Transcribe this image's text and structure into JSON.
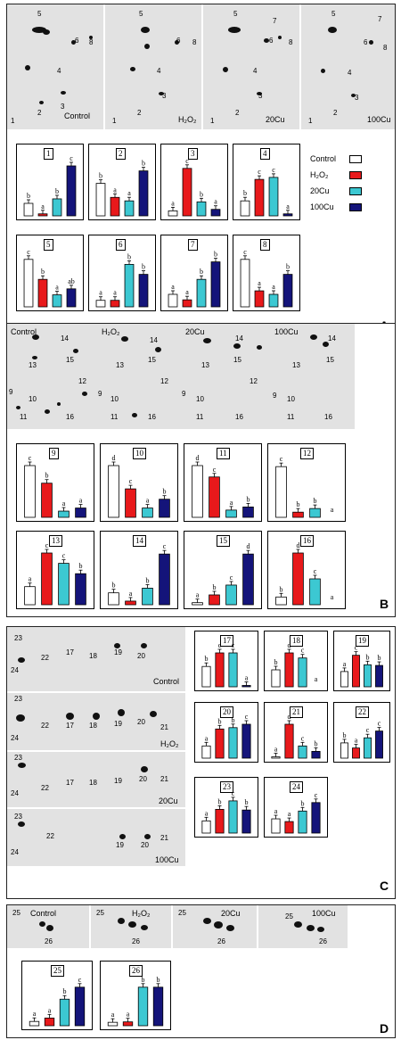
{
  "colors": {
    "control": "#ffffff",
    "h2o2": "#e8191b",
    "cu20": "#3cc8d2",
    "cu100": "#14147a"
  },
  "legend": {
    "items": [
      {
        "key": "control",
        "label": "Control"
      },
      {
        "key": "h2o2",
        "label": "H₂O₂"
      },
      {
        "key": "cu20",
        "label": "20Cu"
      },
      {
        "key": "cu100",
        "label": "100Cu"
      }
    ]
  },
  "panels": {
    "A": {
      "letter": "A",
      "gel_labels": [
        "Control",
        "H₂O₂",
        "20Cu",
        "100Cu"
      ]
    },
    "B": {
      "letter": "B",
      "gel_labels": [
        "Control",
        "H₂O₂",
        "20Cu",
        "100Cu"
      ]
    },
    "C": {
      "letter": "C",
      "gel_labels": [
        "Control",
        "H₂O₂",
        "20Cu",
        "100Cu"
      ]
    },
    "D": {
      "letter": "D",
      "gel_labels": [
        "Control",
        "H₂O₂",
        "20Cu",
        "100Cu"
      ]
    }
  },
  "chart_data": [
    {
      "type": "bar",
      "spot": "1",
      "values": [
        0.25,
        0.04,
        0.34,
        1.0
      ],
      "letters": [
        "b",
        "a",
        "b",
        "c"
      ]
    },
    {
      "type": "bar",
      "spot": "2",
      "values": [
        0.65,
        0.37,
        0.3,
        0.9
      ],
      "letters": [
        "b",
        "a",
        "a",
        "b"
      ]
    },
    {
      "type": "bar",
      "spot": "3",
      "values": [
        0.1,
        0.95,
        0.28,
        0.13
      ],
      "letters": [
        "a",
        "c",
        "b",
        "a"
      ]
    },
    {
      "type": "bar",
      "spot": "4",
      "values": [
        0.3,
        0.73,
        0.77,
        0.04
      ],
      "letters": [
        "b",
        "c",
        "c",
        "a"
      ]
    },
    {
      "type": "bar",
      "spot": "5",
      "values": [
        0.95,
        0.55,
        0.24,
        0.36
      ],
      "letters": [
        "c",
        "b",
        "a",
        "ab"
      ]
    },
    {
      "type": "bar",
      "spot": "6",
      "values": [
        0.13,
        0.13,
        0.85,
        0.65
      ],
      "letters": [
        "a",
        "a",
        "b",
        "b"
      ]
    },
    {
      "type": "bar",
      "spot": "7",
      "values": [
        0.25,
        0.14,
        0.55,
        0.9
      ],
      "letters": [
        "a",
        "a",
        "b",
        "b"
      ]
    },
    {
      "type": "bar",
      "spot": "8",
      "values": [
        0.95,
        0.32,
        0.25,
        0.65
      ],
      "letters": [
        "c",
        "a",
        "a",
        "b"
      ]
    },
    {
      "type": "bar",
      "spot": "9",
      "values": [
        1.0,
        0.66,
        0.12,
        0.18
      ],
      "letters": [
        "c",
        "b",
        "a",
        "a"
      ]
    },
    {
      "type": "bar",
      "spot": "10",
      "values": [
        1.0,
        0.55,
        0.18,
        0.35
      ],
      "letters": [
        "d",
        "c",
        "a",
        "b"
      ]
    },
    {
      "type": "bar",
      "spot": "11",
      "values": [
        1.0,
        0.78,
        0.14,
        0.2
      ],
      "letters": [
        "d",
        "c",
        "a",
        "b"
      ]
    },
    {
      "type": "bar",
      "spot": "12",
      "values": [
        0.98,
        0.1,
        0.17,
        0.0
      ],
      "letters": [
        "c",
        "b",
        "b",
        "a"
      ]
    },
    {
      "type": "bar",
      "spot": "13",
      "values": [
        0.35,
        1.0,
        0.8,
        0.6
      ],
      "letters": [
        "a",
        "c",
        "c",
        "b"
      ]
    },
    {
      "type": "bar",
      "spot": "14",
      "values": [
        0.23,
        0.07,
        0.32,
        0.98
      ],
      "letters": [
        "b",
        "a",
        "b",
        "c"
      ]
    },
    {
      "type": "bar",
      "spot": "15",
      "values": [
        0.04,
        0.19,
        0.38,
        0.98
      ],
      "letters": [
        "a",
        "b",
        "c",
        "d"
      ]
    },
    {
      "type": "bar",
      "spot": "16",
      "values": [
        0.15,
        1.0,
        0.5,
        0.0
      ],
      "letters": [
        "b",
        "d",
        "c",
        "a"
      ]
    },
    {
      "type": "bar",
      "spot": "17",
      "values": [
        0.6,
        1.0,
        1.0,
        0.03
      ],
      "letters": [
        "b",
        "c",
        "c",
        "a"
      ]
    },
    {
      "type": "bar",
      "spot": "18",
      "values": [
        0.5,
        1.0,
        0.85,
        0.0
      ],
      "letters": [
        "b",
        "d",
        "c",
        "a"
      ]
    },
    {
      "type": "bar",
      "spot": "19",
      "values": [
        0.45,
        0.93,
        0.65,
        0.63
      ],
      "letters": [
        "a",
        "c",
        "b",
        "b"
      ]
    },
    {
      "type": "bar",
      "spot": "20",
      "values": [
        0.36,
        0.86,
        0.9,
        1.0
      ],
      "letters": [
        "a",
        "b",
        "b",
        "c"
      ]
    },
    {
      "type": "bar",
      "spot": "21",
      "values": [
        0.02,
        1.0,
        0.36,
        0.2
      ],
      "letters": [
        "a",
        "d",
        "c",
        "b"
      ]
    },
    {
      "type": "bar",
      "spot": "22",
      "values": [
        0.45,
        0.3,
        0.6,
        0.8
      ],
      "letters": [
        "b",
        "a",
        "c",
        "c"
      ]
    },
    {
      "type": "bar",
      "spot": "23",
      "values": [
        0.36,
        0.7,
        0.95,
        0.68
      ],
      "letters": [
        "a",
        "b",
        "c",
        "b"
      ]
    },
    {
      "type": "bar",
      "spot": "24",
      "values": [
        0.42,
        0.34,
        0.65,
        0.9
      ],
      "letters": [
        "a",
        "a",
        "b",
        "c"
      ]
    },
    {
      "type": "bar",
      "spot": "25",
      "values": [
        0.1,
        0.18,
        0.62,
        0.9
      ],
      "letters": [
        "a",
        "a",
        "b",
        "c"
      ]
    },
    {
      "type": "bar",
      "spot": "26",
      "values": [
        0.08,
        0.09,
        0.9,
        0.9
      ],
      "letters": [
        "a",
        "a",
        "b",
        "b"
      ]
    }
  ]
}
